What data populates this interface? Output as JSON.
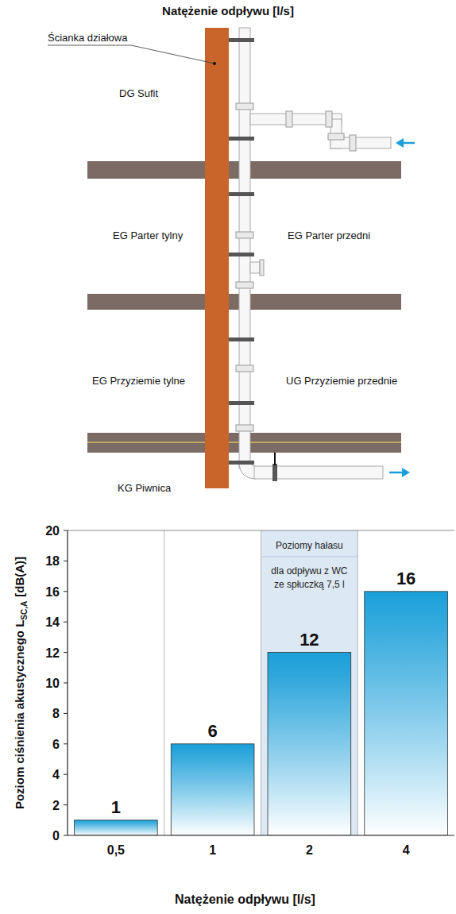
{
  "diagram": {
    "title": "Natężenie odpływu [l/s]",
    "wall_label": "Ścianka działowa",
    "rooms": [
      "DG Sufit",
      "EG Parter tylny",
      "EG Parter przedni",
      "EG Przyziemie tylne",
      "UG Przyziemie przednie",
      "KG Piwnica"
    ]
  },
  "chart_data": {
    "type": "bar",
    "categories": [
      "0,5",
      "1",
      "2",
      "4"
    ],
    "values": [
      1,
      6,
      12,
      16
    ],
    "color": "#1a9fd9",
    "ylim": [
      0,
      20
    ],
    "yticks": [
      0,
      2,
      4,
      6,
      8,
      10,
      12,
      14,
      16,
      18,
      20
    ],
    "grid": true,
    "data_labels": true,
    "x_label": "Natężenie odpływu [l/s]",
    "y_label": {
      "text": "Poziom ciśnienia akustycznego L",
      "sub": "SC,A",
      "after": "[dB(A)]"
    },
    "annotation": {
      "category": "2",
      "lines": [
        "Poziomy hałasu",
        "dla odpływu z WC",
        "ze spłuczką 7,5 l"
      ]
    }
  }
}
